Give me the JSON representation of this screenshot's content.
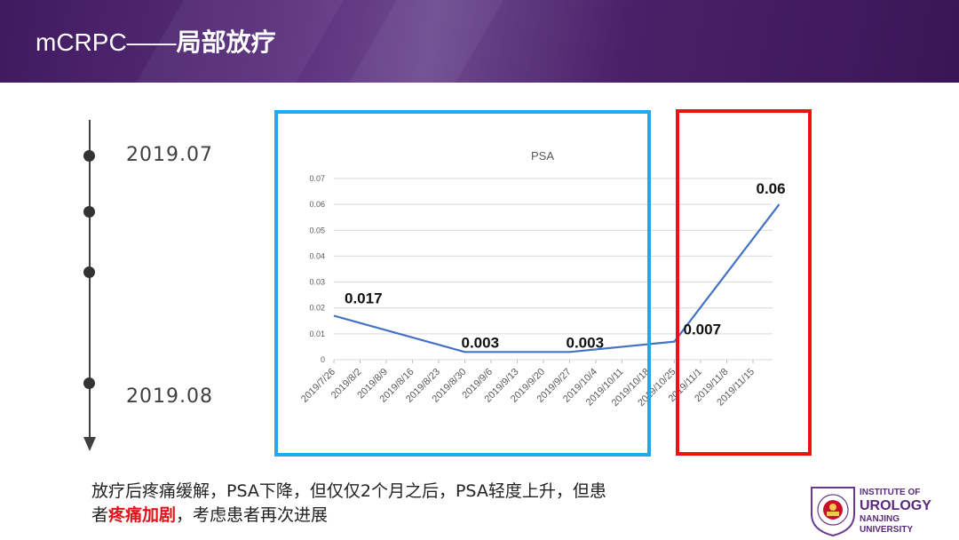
{
  "header": {
    "title_prefix": "mCRPC——",
    "title_main": "局部放疗"
  },
  "timeline": {
    "start_label": "2019.07",
    "end_label": "2019.08"
  },
  "caption": {
    "line1": "放疗后疼痛缓解，PSA下降，但仅仅2个月之后，PSA轻度上升，但患",
    "line2_before": "者",
    "line2_highlight": "疼痛加剧",
    "line2_after": "，考虑患者再次进展"
  },
  "logo": {
    "line1": "INSTITUTE OF",
    "line2": "UROLOGY",
    "line3": "NANJING",
    "line4": "UNIVERSITY"
  },
  "colors": {
    "header": "#4a2168",
    "blue_box": "#1fa9ec",
    "red_box": "#ee1111",
    "line": "#4472c4"
  },
  "chart_data": {
    "type": "line",
    "title": "PSA",
    "x": [
      "2019/7/26",
      "2019/8/2",
      "2019/8/9",
      "2019/8/16",
      "2019/8/23",
      "2019/8/30",
      "2019/9/6",
      "2019/9/13",
      "2019/9/20",
      "2019/9/27",
      "2019/10/4",
      "2019/10/11",
      "2019/10/18",
      "2019/10/25",
      "2019/11/1",
      "2019/11/8",
      "2019/11/15"
    ],
    "series": [
      {
        "points": [
          {
            "x": "2019/7/26",
            "y": 0.017
          },
          {
            "x": "2019/8/30",
            "y": 0.003
          },
          {
            "x": "2019/9/27",
            "y": 0.003
          },
          {
            "x": "2019/10/25",
            "y": 0.007
          },
          {
            "x": "2019/11/22",
            "y": 0.06
          }
        ]
      }
    ],
    "data_labels": [
      {
        "x": "2019/7/26",
        "text": "0.017"
      },
      {
        "x": "2019/8/30",
        "text": "0.003"
      },
      {
        "x": "2019/9/27",
        "text": "0.003"
      },
      {
        "x": "2019/10/25",
        "text": "0.007"
      },
      {
        "x": "2019/11/22",
        "text": "0.06"
      }
    ],
    "yticks": [
      "0",
      "0.01",
      "0.02",
      "0.03",
      "0.04",
      "0.05",
      "0.06",
      "0.07"
    ],
    "ylim": [
      0,
      0.07
    ],
    "grid": true,
    "legend": "none"
  }
}
